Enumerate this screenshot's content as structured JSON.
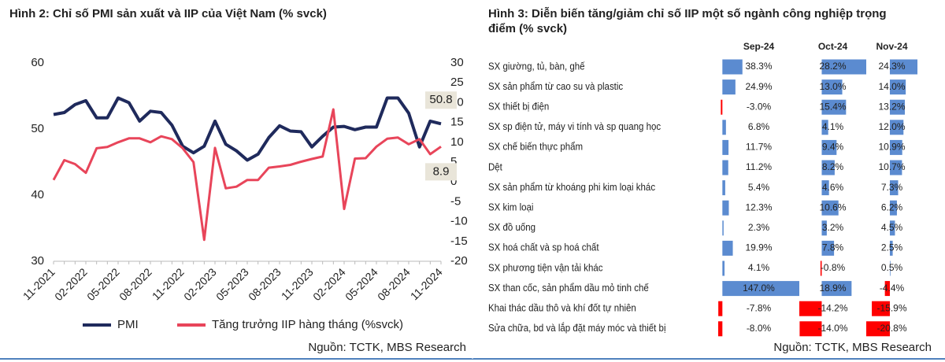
{
  "chart_data": [
    {
      "type": "line",
      "title": "Hình 2: Chỉ số PMI sản xuất và IIP của Việt Nam (% svck)",
      "categories": [
        "11-2021",
        null,
        null,
        "02-2022",
        null,
        null,
        "05-2022",
        null,
        null,
        "08-2022",
        null,
        null,
        "11-2022",
        null,
        null,
        "02-2023",
        null,
        null,
        "05-2023",
        null,
        null,
        "08-2023",
        null,
        null,
        "11-2023",
        null,
        null,
        "02-2024",
        null,
        null,
        "05-2024",
        null,
        null,
        "08-2024",
        null,
        null,
        "11-2024"
      ],
      "series": [
        {
          "name": "PMI",
          "color": "#1f2a5c",
          "axis": "y",
          "values": [
            52.2,
            52.5,
            53.7,
            54.3,
            51.7,
            51.7,
            54.7,
            54.0,
            51.2,
            52.7,
            52.5,
            50.6,
            47.4,
            46.4,
            47.4,
            51.2,
            47.7,
            46.7,
            45.3,
            46.2,
            48.7,
            50.5,
            49.7,
            49.6,
            47.3,
            48.9,
            50.3,
            50.4,
            49.9,
            50.3,
            50.3,
            54.7,
            54.7,
            52.4,
            47.3,
            51.2,
            50.8
          ]
        },
        {
          "name": "Tăng trưởng IIP hàng tháng (%svck)",
          "color": "#e8455a",
          "axis": "y2",
          "values": [
            0.5,
            5.5,
            4.5,
            2.3,
            8.5,
            8.8,
            10.0,
            11.0,
            11.0,
            10.0,
            11.5,
            10.8,
            8.5,
            5.0,
            -14.6,
            8.6,
            -1.6,
            -1.2,
            0.5,
            0.5,
            3.6,
            3.9,
            4.3,
            5.1,
            5.8,
            6.4,
            18.3,
            -6.8,
            5.9,
            6.0,
            8.9,
            10.9,
            11.2,
            9.5,
            10.8,
            7.0,
            8.9
          ]
        }
      ],
      "ylim": [
        30,
        60
      ],
      "yticks": [
        30,
        40,
        50,
        60
      ],
      "y2lim": [
        -20,
        30
      ],
      "y2ticks": [
        -20,
        -15,
        -10,
        -5,
        0,
        5,
        10,
        15,
        20,
        25,
        30
      ],
      "grid": false,
      "source": "Nguồn: TCTK, MBS Research"
    },
    {
      "type": "bar",
      "title": "Hình 3: Diễn biến tăng/giảm chỉ số IIP một số ngành công nghiệp trọng điểm (% svck)",
      "categories": [
        "SX giường, tủ, bàn, ghế",
        "SX sản phẩm từ cao su và plastic",
        "SX thiết bị điện",
        "SX sp điện tử, máy vi tính và sp quang học",
        "SX chế biến thực phẩm",
        "Dệt",
        "SX sản phẩm từ khoáng phi kim loại khác",
        "SX kim loại",
        "SX đồ uống",
        "SX hoá chất và sp hoá chất",
        "SX phương tiện vận tải khác",
        "SX than cốc, sản phẩm dầu mỏ tinh chế",
        "Khai thác dầu thô và khí đốt tự nhiên",
        "Sửa chữa, bd và lắp đặt máy móc và thiết bị"
      ],
      "color": "#5b8bd0",
      "negative_color": "#ff0000",
      "series": [
        {
          "name": "Sep-24",
          "values": [
            38.3,
            24.9,
            -3.0,
            6.8,
            11.7,
            11.2,
            5.4,
            12.3,
            2.3,
            19.9,
            4.1,
            147.0,
            -7.8,
            -8.0
          ],
          "value_labels": [
            "38.3%",
            "24.9%",
            "-3.0%",
            "6.8%",
            "11.7%",
            "11.2%",
            "5.4%",
            "12.3%",
            "2.3%",
            "19.9%",
            "4.1%",
            "147.0%",
            "-7.8%",
            "-8.0%"
          ]
        },
        {
          "name": "Oct-24",
          "values": [
            28.2,
            13.0,
            15.4,
            4.1,
            9.4,
            8.2,
            4.6,
            10.6,
            3.2,
            7.8,
            -0.8,
            18.9,
            -14.2,
            -14.0
          ],
          "value_labels": [
            "28.2%",
            "13.0%",
            "15.4%",
            "4.1%",
            "9.4%",
            "8.2%",
            "4.6%",
            "10.6%",
            "3.2%",
            "7.8%",
            "-0.8%",
            "18.9%",
            "-14.2%",
            "-14.0%"
          ]
        },
        {
          "name": "Nov-24",
          "values": [
            24.3,
            14.0,
            13.2,
            12.0,
            10.9,
            10.7,
            7.3,
            6.2,
            4.5,
            2.5,
            0.5,
            -4.4,
            -15.9,
            -20.8
          ],
          "value_labels": [
            "24.3%",
            "14.0%",
            "13.2%",
            "12.0%",
            "10.9%",
            "10.7%",
            "7.3%",
            "6.2%",
            "4.5%",
            "2.5%",
            "0.5%",
            "-4.4%",
            "-15.9%",
            "-20.8%"
          ]
        }
      ],
      "source": "Nguồn: TCTK, MBS Research"
    }
  ]
}
